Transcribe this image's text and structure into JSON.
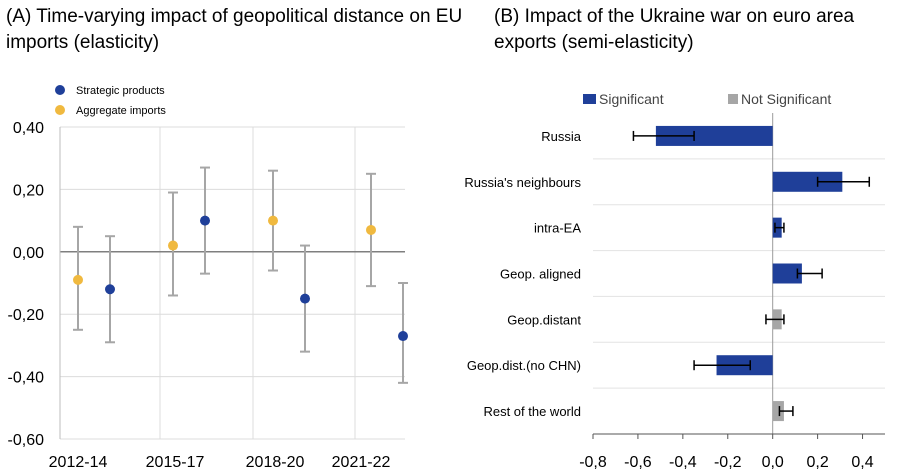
{
  "chart_data": [
    {
      "type": "scatter",
      "title": "(A) Time-varying impact of geopolitical distance on EU imports (elasticity)",
      "xlabel": "",
      "ylabel": "",
      "x_tick_labels": [
        "2012-14",
        "2015-17",
        "2018-20",
        "2021-22"
      ],
      "ylim": [
        -0.6,
        0.4
      ],
      "y_ticks": [
        0.4,
        0.2,
        0.0,
        -0.2,
        -0.4,
        -0.6
      ],
      "y_tick_labels": [
        "0,40",
        "0,20",
        "0,00",
        "-0,20",
        "-0,40",
        "-0,60"
      ],
      "grid": true,
      "legend_position": "top-left",
      "series": [
        {
          "name": "Strategic products",
          "color": "#1f3f99",
          "x": [
            "2012-14",
            "2015-17",
            "2018-20",
            "2021-22"
          ],
          "values": [
            -0.12,
            0.1,
            -0.15,
            -0.27
          ],
          "ci_low": [
            -0.29,
            -0.07,
            -0.32,
            -0.42
          ],
          "ci_high": [
            0.05,
            0.27,
            0.02,
            -0.1
          ]
        },
        {
          "name": "Aggregate imports",
          "color": "#f0b93f",
          "x": [
            "2012-14",
            "2015-17",
            "2018-20",
            "2021-22"
          ],
          "values": [
            -0.09,
            0.02,
            0.1,
            0.07
          ],
          "ci_low": [
            -0.25,
            -0.14,
            -0.06,
            -0.11
          ],
          "ci_high": [
            0.08,
            0.19,
            0.26,
            0.25
          ]
        }
      ]
    },
    {
      "type": "bar",
      "orientation": "horizontal",
      "title": "(B) Impact of the Ukraine war on euro area exports (semi-elasticity)",
      "xlabel": "",
      "ylabel": "",
      "xlim": [
        -0.8,
        0.5
      ],
      "x_ticks": [
        -0.8,
        -0.6,
        -0.4,
        -0.2,
        0.0,
        0.2,
        0.4
      ],
      "x_tick_labels": [
        "-0,8",
        "-0,6",
        "-0,4",
        "-0,2",
        "0,0",
        "0,2",
        "0,4"
      ],
      "legend_position": "top",
      "legend": [
        {
          "name": "Significant",
          "color": "#1f3f99"
        },
        {
          "name": "Not Significant",
          "color": "#a6a6a6"
        }
      ],
      "categories": [
        "Russia",
        "Russia's neighbours",
        "intra-EA",
        "Geop. aligned",
        "Geop.distant",
        "Geop.dist.(no CHN)",
        "Rest of the world"
      ],
      "values": [
        -0.52,
        0.31,
        0.04,
        0.13,
        0.04,
        -0.25,
        0.05
      ],
      "ci_low": [
        -0.62,
        0.2,
        0.01,
        0.11,
        -0.03,
        -0.35,
        0.03
      ],
      "ci_high": [
        -0.35,
        0.43,
        0.05,
        0.22,
        0.05,
        -0.1,
        0.09
      ],
      "significant": [
        true,
        true,
        true,
        true,
        false,
        true,
        false
      ]
    }
  ]
}
